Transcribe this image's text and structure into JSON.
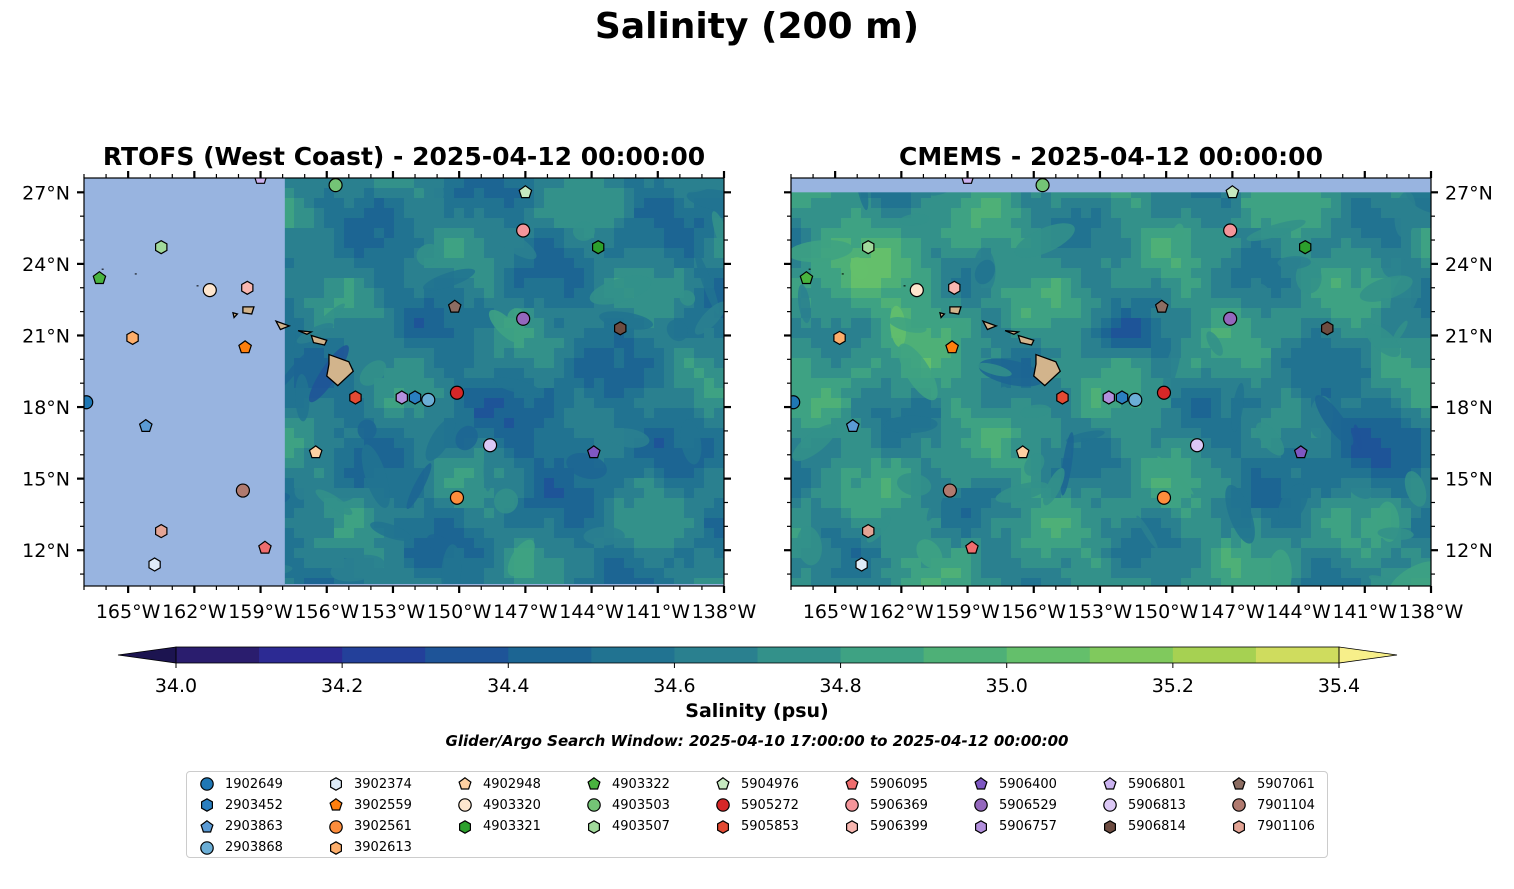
{
  "suptitle": "Salinity (200 m)",
  "panels": [
    {
      "title": "RTOFS (West Coast) - 2025-04-12 00:00:00",
      "y_labels_side": "left"
    },
    {
      "title": "CMEMS - 2025-04-12 00:00:00",
      "y_labels_side": "right"
    }
  ],
  "colorbar": {
    "label": "Salinity (psu)",
    "ticks": [
      "34.0",
      "34.2",
      "34.4",
      "34.6",
      "34.8",
      "35.0",
      "35.2",
      "35.4"
    ],
    "levels": [
      34.0,
      34.1,
      34.2,
      34.3,
      34.4,
      34.5,
      34.6,
      34.7,
      34.8,
      34.9,
      35.0,
      35.1,
      35.2,
      35.3,
      35.4
    ],
    "colors": [
      "#2a1d6e",
      "#2c2a93",
      "#23409a",
      "#1e5498",
      "#1c6593",
      "#217391",
      "#2a808f",
      "#33918a",
      "#3ea283",
      "#4eb077",
      "#64bf6b",
      "#80c95d",
      "#a6d152",
      "#cfdc5e"
    ],
    "extend_low": "#1c1450",
    "extend_high": "#f7ef8a",
    "extend": "both"
  },
  "search_window": "Glider/Argo Search Window: 2025-04-10 17:00:00 to 2025-04-12 00:00:00",
  "chart_data": {
    "type": "map",
    "projection": "PlateCarree",
    "lon_range": [
      -167,
      -138
    ],
    "lat_range": [
      10.5,
      27.6
    ],
    "x_ticks": [
      "165°W",
      "162°W",
      "159°W",
      "156°W",
      "153°W",
      "150°W",
      "147°W",
      "144°W",
      "141°W",
      "138°W"
    ],
    "x_tick_values": [
      -165,
      -162,
      -159,
      -156,
      -153,
      -150,
      -147,
      -144,
      -141,
      -138
    ],
    "y_ticks": [
      "27°N",
      "24°N",
      "21°N",
      "18°N",
      "15°N",
      "12°N"
    ],
    "y_tick_values": [
      27,
      24,
      21,
      18,
      15,
      12
    ],
    "variable": "salinity",
    "depth_m": 200,
    "units": "psu",
    "rtofs_domain_west_lon": -157.9,
    "cmems_north_lat": 27.0,
    "land_color": "#d2b48c",
    "nodata_color": "#98b4e0",
    "floats": [
      {
        "id": "1902649",
        "marker": "circle",
        "color": "#1f77b4",
        "lon": -166.9,
        "lat": 18.2
      },
      {
        "id": "2903452",
        "marker": "hexagon",
        "color": "#2a7fc0",
        "lon": -152.0,
        "lat": 18.4
      },
      {
        "id": "2903863",
        "marker": "pentagon",
        "color": "#5b9bd5",
        "lon": -164.2,
        "lat": 17.2
      },
      {
        "id": "2903868",
        "marker": "circle",
        "color": "#6baed6",
        "lon": -151.4,
        "lat": 18.3
      },
      {
        "id": "3902374",
        "marker": "hexagon",
        "color": "#deebf7",
        "lon": -163.8,
        "lat": 11.4
      },
      {
        "id": "3902559",
        "marker": "pentagon",
        "color": "#ff7f0e",
        "lon": -159.7,
        "lat": 20.5
      },
      {
        "id": "3902561",
        "marker": "circle",
        "color": "#fd8d3c",
        "lon": -150.1,
        "lat": 14.2
      },
      {
        "id": "3902613",
        "marker": "hexagon",
        "color": "#fdae6b",
        "lon": -164.8,
        "lat": 20.9
      },
      {
        "id": "4902948",
        "marker": "pentagon",
        "color": "#fdd0a2",
        "lon": -156.5,
        "lat": 16.1
      },
      {
        "id": "4903320",
        "marker": "circle",
        "color": "#fee6ce",
        "lon": -161.3,
        "lat": 22.9
      },
      {
        "id": "4903321",
        "marker": "hexagon",
        "color": "#2ca02c",
        "lon": -143.7,
        "lat": 24.7
      },
      {
        "id": "4903322",
        "marker": "pentagon",
        "color": "#49b43f",
        "lon": -166.3,
        "lat": 23.4
      },
      {
        "id": "4903503",
        "marker": "circle",
        "color": "#74c476",
        "lon": -155.6,
        "lat": 27.3
      },
      {
        "id": "4903507",
        "marker": "hexagon",
        "color": "#a1d99b",
        "lon": -163.5,
        "lat": 24.7
      },
      {
        "id": "5904976",
        "marker": "pentagon",
        "color": "#c7e9c0",
        "lon": -147.0,
        "lat": 27.0
      },
      {
        "id": "5905272",
        "marker": "circle",
        "color": "#d62728",
        "lon": -150.1,
        "lat": 18.6
      },
      {
        "id": "5905853",
        "marker": "hexagon",
        "color": "#e34a33",
        "lon": -154.7,
        "lat": 18.4
      },
      {
        "id": "5906095",
        "marker": "pentagon",
        "color": "#ef6d6e",
        "lon": -158.8,
        "lat": 12.1
      },
      {
        "id": "5906369",
        "marker": "circle",
        "color": "#f4959a",
        "lon": -147.1,
        "lat": 25.4
      },
      {
        "id": "5906399",
        "marker": "hexagon",
        "color": "#f7b6b0",
        "lon": -159.6,
        "lat": 23.0
      },
      {
        "id": "5906400",
        "marker": "pentagon",
        "color": "#7e57c2",
        "lon": -143.9,
        "lat": 16.1
      },
      {
        "id": "5906529",
        "marker": "circle",
        "color": "#9467bd",
        "lon": -147.1,
        "lat": 21.7
      },
      {
        "id": "5906757",
        "marker": "hexagon",
        "color": "#b28fdc",
        "lon": -152.6,
        "lat": 18.4
      },
      {
        "id": "5906801",
        "marker": "pentagon",
        "color": "#cbb3f0",
        "lon": -159.0,
        "lat": 27.6
      },
      {
        "id": "5906813",
        "marker": "circle",
        "color": "#dcc8f5",
        "lon": -148.6,
        "lat": 16.4
      },
      {
        "id": "5906814",
        "marker": "hexagon",
        "color": "#6d4c41",
        "lon": -142.7,
        "lat": 21.3
      },
      {
        "id": "5907061",
        "marker": "pentagon",
        "color": "#8c6d62",
        "lon": -150.2,
        "lat": 22.2
      },
      {
        "id": "7901104",
        "marker": "circle",
        "color": "#b07a6f",
        "lon": -159.8,
        "lat": 14.5
      },
      {
        "id": "7901106",
        "marker": "hexagon",
        "color": "#e3a495",
        "lon": -163.5,
        "lat": 12.8
      }
    ]
  }
}
